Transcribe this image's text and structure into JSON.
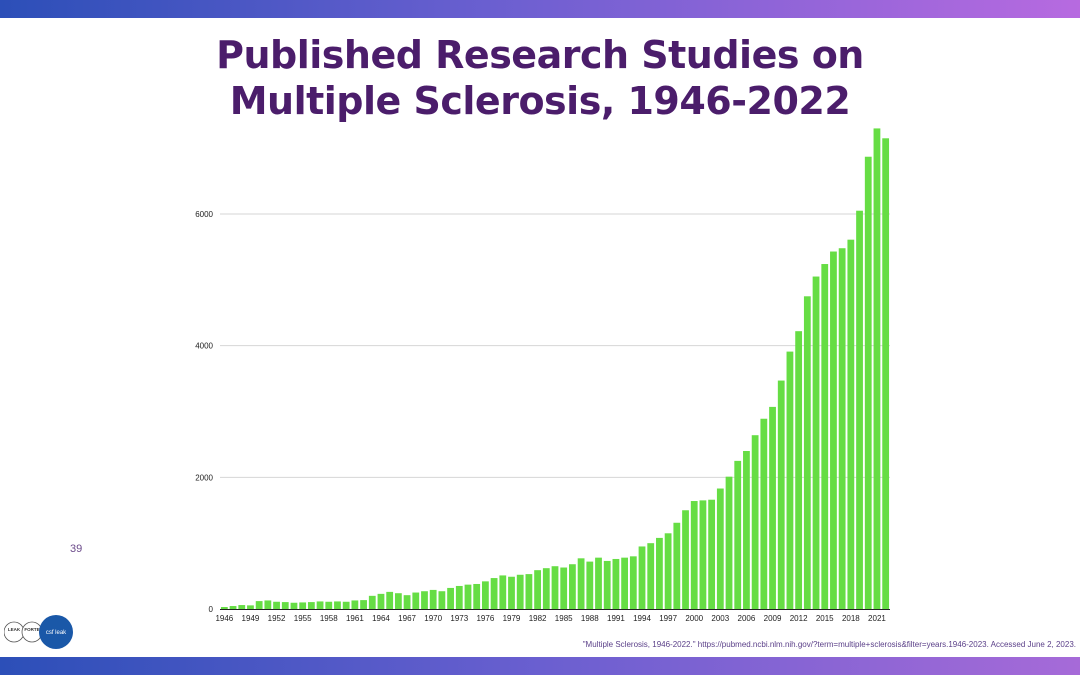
{
  "slide": {
    "title_line1": "Published Research Studies on",
    "title_line2": "Multiple Sclerosis, 1946-2022",
    "number": "39",
    "citation": "\"Multiple Sclerosis, 1946-2022.\" https://pubmed.ncbi.nlm.nih.gov/?term=multiple+sclerosis&filter=years.1946-2023. Accessed June 2, 2023."
  },
  "logos": {
    "left_logo_lines": [
      "LEAK",
      "FORTE"
    ],
    "right_logo_text": "csf leak"
  },
  "colors": {
    "title": "#4b1d6b",
    "bar": "#66dd44",
    "band_start": "#2c4fb8",
    "band_end": "#b76ae0"
  },
  "chart_data": {
    "type": "bar",
    "title": "Published Research Studies on Multiple Sclerosis, 1946-2022",
    "xlabel": "",
    "ylabel": "",
    "ylim": [
      0,
      7400
    ],
    "yticks": [
      0,
      2000,
      4000,
      6000
    ],
    "grid": true,
    "x_tick_labels": [
      "1946",
      "1949",
      "1952",
      "1955",
      "1958",
      "1961",
      "1964",
      "1967",
      "1970",
      "1973",
      "1976",
      "1979",
      "1982",
      "1985",
      "1988",
      "1991",
      "1994",
      "1997",
      "2000",
      "2003",
      "2006",
      "2009",
      "2012",
      "2015",
      "2018",
      "2021"
    ],
    "categories": [
      "1946",
      "1947",
      "1948",
      "1949",
      "1950",
      "1951",
      "1952",
      "1953",
      "1954",
      "1955",
      "1956",
      "1957",
      "1958",
      "1959",
      "1960",
      "1961",
      "1962",
      "1963",
      "1964",
      "1965",
      "1966",
      "1967",
      "1968",
      "1969",
      "1970",
      "1971",
      "1972",
      "1973",
      "1974",
      "1975",
      "1976",
      "1977",
      "1978",
      "1979",
      "1980",
      "1981",
      "1982",
      "1983",
      "1984",
      "1985",
      "1986",
      "1987",
      "1988",
      "1989",
      "1990",
      "1991",
      "1992",
      "1993",
      "1994",
      "1995",
      "1996",
      "1997",
      "1998",
      "1999",
      "2000",
      "2001",
      "2002",
      "2003",
      "2004",
      "2005",
      "2006",
      "2007",
      "2008",
      "2009",
      "2010",
      "2011",
      "2012",
      "2013",
      "2014",
      "2015",
      "2016",
      "2017",
      "2018",
      "2019",
      "2020",
      "2021",
      "2022"
    ],
    "values": [
      30,
      45,
      60,
      55,
      120,
      130,
      110,
      105,
      95,
      100,
      105,
      115,
      110,
      115,
      110,
      130,
      135,
      200,
      230,
      260,
      240,
      210,
      250,
      270,
      290,
      270,
      320,
      350,
      370,
      380,
      420,
      470,
      510,
      490,
      520,
      530,
      590,
      620,
      650,
      630,
      680,
      770,
      720,
      780,
      730,
      760,
      780,
      800,
      950,
      1000,
      1080,
      1150,
      1310,
      1500,
      1640,
      1650,
      1660,
      1830,
      2010,
      2250,
      2400,
      2640,
      2890,
      3070,
      3470,
      3910,
      4220,
      4750,
      5050,
      5240,
      5430,
      5480,
      5610,
      6050,
      6870,
      7300,
      7150
    ]
  }
}
